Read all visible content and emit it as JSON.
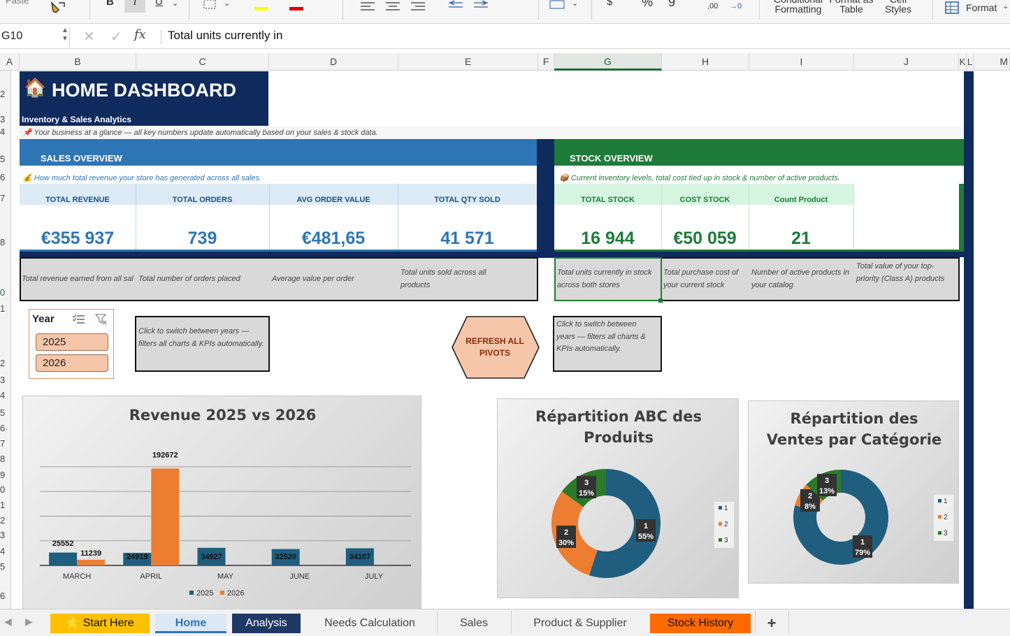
{
  "ribbon": {
    "paste": "Paste",
    "bold": "B",
    "italic": "I",
    "underline": "U",
    "currency": "$",
    "percent": "%",
    "comma": "9",
    "dec_increase": ",00",
    "dec_decrease": "→0",
    "conditional_formatting": "Conditional Formatting",
    "format_as_table": "Format as Table",
    "cell_styles": "Cell Styles",
    "format": "Format"
  },
  "formula_bar": {
    "name_box": "G10",
    "fx": "fx",
    "content": "Total units currently in"
  },
  "columns": [
    "A",
    "B",
    "C",
    "D",
    "E",
    "F",
    "G",
    "H",
    "I",
    "J",
    "K",
    "L",
    "M"
  ],
  "rows": [
    "2",
    "3",
    "4",
    "5",
    "6",
    "7",
    "8",
    "0",
    "1",
    "2",
    "3",
    "4",
    "5",
    "6",
    "7",
    "8",
    "9",
    "0",
    "1",
    "2",
    "3",
    "4",
    "5",
    "6"
  ],
  "dashboard": {
    "title": "HOME DASHBOARD",
    "subtitle": "Inventory & Sales Analytics",
    "tagline": "📌 Your business at a glance — all key numbers update automatically based on your sales & stock data."
  },
  "sales": {
    "header": "SALES OVERVIEW",
    "description": "💰 How much total revenue your store has generated across all sales.",
    "kpis": [
      {
        "label": "TOTAL REVENUE",
        "value": "€355 937",
        "note": "Total revenue earned from all sal"
      },
      {
        "label": "TOTAL ORDERS",
        "value": "739",
        "note": "Total number of orders placed"
      },
      {
        "label": "AVG ORDER VALUE",
        "value": "€481,65",
        "note": "Average value per order"
      },
      {
        "label": "TOTAL QTY SOLD",
        "value": "41 571",
        "note": "Total units sold across all products"
      }
    ]
  },
  "stock": {
    "header": "STOCK OVERVIEW",
    "description": "📦 Current inventory levels, total cost tied up in stock & number of active products.",
    "kpis": [
      {
        "label": "TOTAL STOCK",
        "value": "16 944",
        "note": "Total units currently in stock across both stores"
      },
      {
        "label": "COST STOCK",
        "value": "€50 059",
        "note": "Total purchase cost of your current stock"
      },
      {
        "label": "Count Product",
        "value": "21",
        "note": "Number of active products in your catalog"
      },
      {
        "label": "",
        "value": "",
        "note": "Total value of your top-priority (Class A) products"
      }
    ]
  },
  "slicer": {
    "title": "Year",
    "items": [
      "2025",
      "2026"
    ],
    "note": "Click to switch between years — filters all charts & KPIs automatically."
  },
  "refresh_button": "REFRESH ALL PIVOTS",
  "right_note": "Click to switch between years — filters all charts & KPIs automatically.",
  "colors": {
    "navy": "#0f2a5c",
    "sales_blue": "#2e75b6",
    "stock_green": "#1e7b3a",
    "series_2025": "#1f5e7e",
    "series_2026": "#ed7d31",
    "class_3": "#2b7a2b"
  },
  "chart_data": [
    {
      "type": "bar",
      "title": "Revenue 2025 vs 2026",
      "categories": [
        "MARCH",
        "APRIL",
        "MAY",
        "JUNE",
        "JULY"
      ],
      "series": [
        {
          "name": "2025",
          "values": [
            25552,
            24919,
            34927,
            32520,
            34107
          ]
        },
        {
          "name": "2026",
          "values": [
            11239,
            192672,
            null,
            null,
            null
          ]
        }
      ],
      "ylim": [
        0,
        200000
      ],
      "grid": true,
      "legend": "bottom"
    },
    {
      "type": "pie",
      "title": "Répartition ABC des Produits",
      "donut": true,
      "categories": [
        "1",
        "2",
        "3"
      ],
      "values": [
        55,
        30,
        15
      ],
      "labels": [
        "55%",
        "30%",
        "15%"
      ],
      "legend": "right"
    },
    {
      "type": "pie",
      "title": "Répartition des Ventes par Catégorie",
      "donut": true,
      "categories": [
        "1",
        "2",
        "3"
      ],
      "values": [
        79,
        8,
        13
      ],
      "labels": [
        "79%",
        "8%",
        "13%"
      ],
      "legend": "right"
    }
  ],
  "tabs": [
    "⭐ Start Here",
    "Home",
    "Analysis",
    "Needs Calculation",
    "Sales",
    "Product & Supplier",
    "Stock History",
    "+"
  ]
}
